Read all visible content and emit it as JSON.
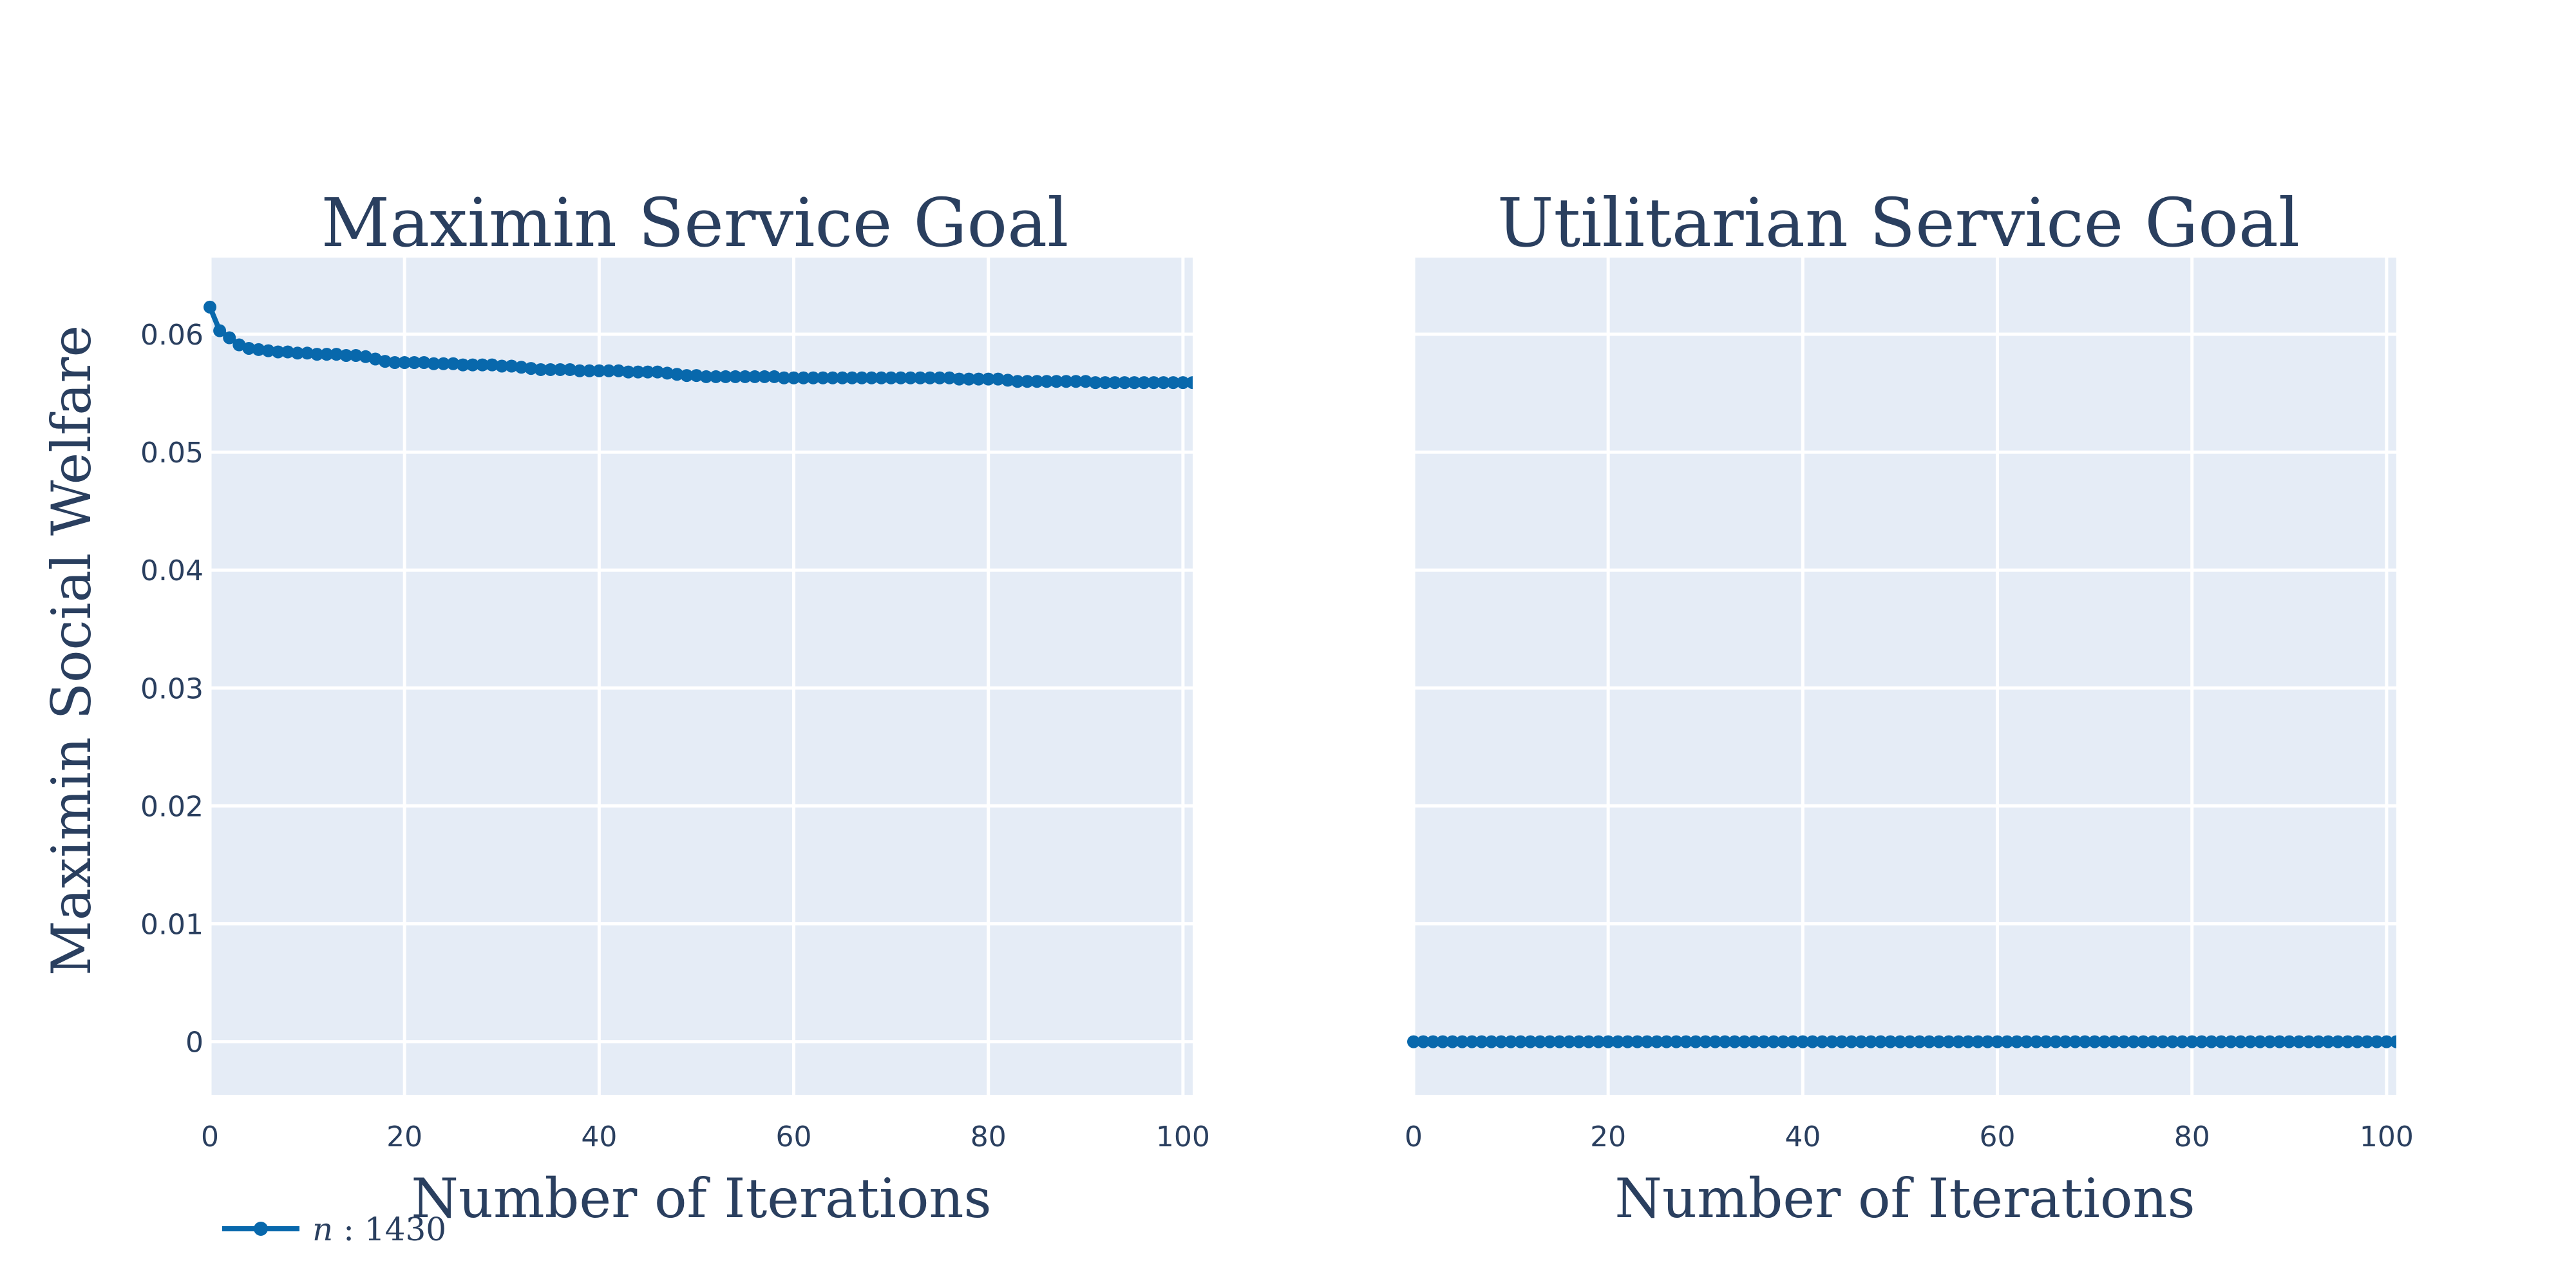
{
  "colors": {
    "series": "#0868ac",
    "text": "#2a3f5f",
    "plot_bg": "#e5ecf6"
  },
  "chart_data": [
    {
      "type": "line",
      "title": "Maximin Service Goal",
      "xlabel": "Number of Iterations",
      "ylabel": "Maximin Social Welfare",
      "xlim": [
        0,
        101
      ],
      "ylim": [
        -0.0045,
        0.0665
      ],
      "xticks": [
        "0",
        "20",
        "40",
        "60",
        "80",
        "100"
      ],
      "yticks": [
        "0",
        "0.01",
        "0.02",
        "0.03",
        "0.04",
        "0.05",
        "0.06"
      ],
      "series": [
        {
          "name": "n : 1430",
          "x": [
            0,
            1,
            2,
            3,
            4,
            5,
            6,
            7,
            8,
            9,
            10,
            11,
            12,
            13,
            14,
            15,
            16,
            17,
            18,
            19,
            20,
            21,
            22,
            23,
            24,
            25,
            26,
            27,
            28,
            29,
            30,
            31,
            32,
            33,
            34,
            35,
            36,
            37,
            38,
            39,
            40,
            41,
            42,
            43,
            44,
            45,
            46,
            47,
            48,
            49,
            50,
            51,
            52,
            53,
            54,
            55,
            56,
            57,
            58,
            59,
            60,
            61,
            62,
            63,
            64,
            65,
            66,
            67,
            68,
            69,
            70,
            71,
            72,
            73,
            74,
            75,
            76,
            77,
            78,
            79,
            80,
            81,
            82,
            83,
            84,
            85,
            86,
            87,
            88,
            89,
            90,
            91,
            92,
            93,
            94,
            95,
            96,
            97,
            98,
            99,
            100,
            101
          ],
          "y": [
            0.0623,
            0.0603,
            0.0597,
            0.0591,
            0.0588,
            0.0587,
            0.0586,
            0.0585,
            0.0585,
            0.0584,
            0.0584,
            0.0583,
            0.0583,
            0.0583,
            0.0582,
            0.0582,
            0.0581,
            0.0579,
            0.0577,
            0.0576,
            0.0576,
            0.0576,
            0.0576,
            0.0575,
            0.0575,
            0.0575,
            0.0574,
            0.0574,
            0.0574,
            0.0574,
            0.0573,
            0.0573,
            0.0572,
            0.0571,
            0.057,
            0.057,
            0.057,
            0.057,
            0.0569,
            0.0569,
            0.0569,
            0.0569,
            0.0569,
            0.0568,
            0.0568,
            0.0568,
            0.0568,
            0.0567,
            0.0566,
            0.0565,
            0.0565,
            0.0564,
            0.0564,
            0.0564,
            0.0564,
            0.0564,
            0.0564,
            0.0564,
            0.0564,
            0.0563,
            0.0563,
            0.0563,
            0.0563,
            0.0563,
            0.0563,
            0.0563,
            0.0563,
            0.0563,
            0.0563,
            0.0563,
            0.0563,
            0.0563,
            0.0563,
            0.0563,
            0.0563,
            0.0563,
            0.0563,
            0.0562,
            0.0562,
            0.0562,
            0.0562,
            0.0562,
            0.0561,
            0.056,
            0.056,
            0.056,
            0.056,
            0.056,
            0.056,
            0.056,
            0.056,
            0.0559,
            0.0559,
            0.0559,
            0.0559,
            0.0559,
            0.0559,
            0.0559,
            0.0559,
            0.0559,
            0.0559,
            0.0559
          ]
        }
      ]
    },
    {
      "type": "line",
      "title": "Utilitarian Service Goal",
      "xlabel": "Number of Iterations",
      "ylabel": "",
      "xlim": [
        0,
        101
      ],
      "ylim": [
        -0.0045,
        0.0665
      ],
      "xticks": [
        "0",
        "20",
        "40",
        "60",
        "80",
        "100"
      ],
      "yticks": [],
      "series": [
        {
          "name": "n : 1430",
          "x": [
            0,
            1,
            2,
            3,
            4,
            5,
            6,
            7,
            8,
            9,
            10,
            11,
            12,
            13,
            14,
            15,
            16,
            17,
            18,
            19,
            20,
            21,
            22,
            23,
            24,
            25,
            26,
            27,
            28,
            29,
            30,
            31,
            32,
            33,
            34,
            35,
            36,
            37,
            38,
            39,
            40,
            41,
            42,
            43,
            44,
            45,
            46,
            47,
            48,
            49,
            50,
            51,
            52,
            53,
            54,
            55,
            56,
            57,
            58,
            59,
            60,
            61,
            62,
            63,
            64,
            65,
            66,
            67,
            68,
            69,
            70,
            71,
            72,
            73,
            74,
            75,
            76,
            77,
            78,
            79,
            80,
            81,
            82,
            83,
            84,
            85,
            86,
            87,
            88,
            89,
            90,
            91,
            92,
            93,
            94,
            95,
            96,
            97,
            98,
            99,
            100,
            101
          ],
          "y": [
            0,
            0,
            0,
            0,
            0,
            0,
            0,
            0,
            0,
            0,
            0,
            0,
            0,
            0,
            0,
            0,
            0,
            0,
            0,
            0,
            0,
            0,
            0,
            0,
            0,
            0,
            0,
            0,
            0,
            0,
            0,
            0,
            0,
            0,
            0,
            0,
            0,
            0,
            0,
            0,
            0,
            0,
            0,
            0,
            0,
            0,
            0,
            0,
            0,
            0,
            0,
            0,
            0,
            0,
            0,
            0,
            0,
            0,
            0,
            0,
            0,
            0,
            0,
            0,
            0,
            0,
            0,
            0,
            0,
            0,
            0,
            0,
            0,
            0,
            0,
            0,
            0,
            0,
            0,
            0,
            0,
            0,
            0,
            0,
            0,
            0,
            0,
            0,
            0,
            0,
            0,
            0,
            0,
            0,
            0,
            0,
            0,
            0,
            0,
            0,
            0,
            0
          ]
        }
      ]
    }
  ],
  "legend": {
    "label_var": "n",
    "label_rest": " : 1430",
    "placement": "bottom-left"
  }
}
